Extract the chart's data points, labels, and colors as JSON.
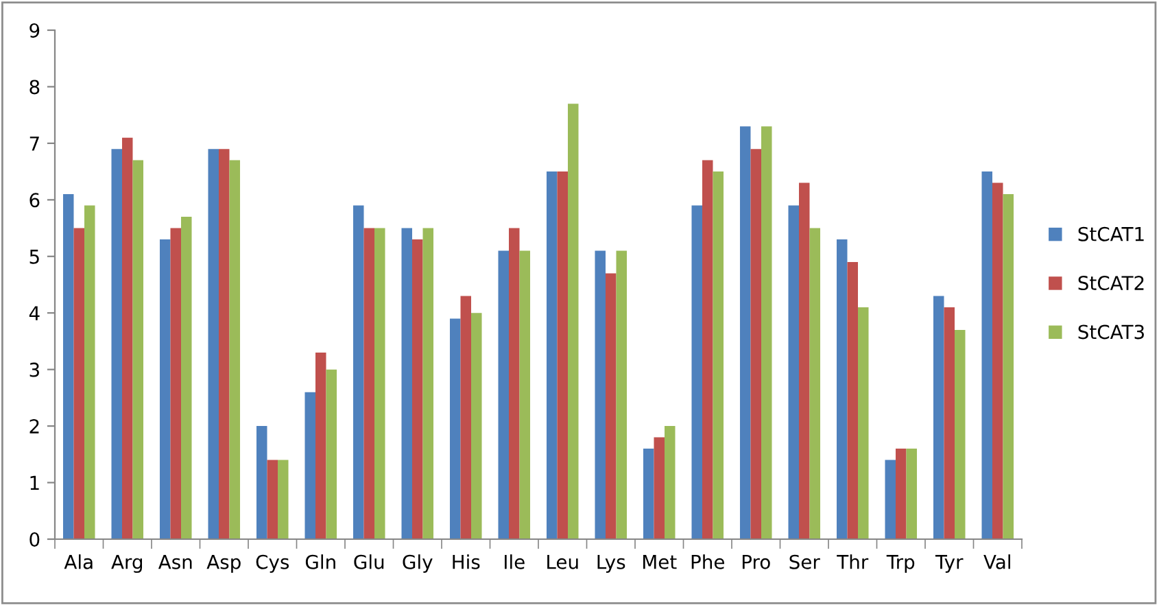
{
  "chart_data": {
    "type": "bar",
    "categories": [
      "Ala",
      "Arg",
      "Asn",
      "Asp",
      "Cys",
      "Gln",
      "Glu",
      "Gly",
      "His",
      "Ile",
      "Leu",
      "Lys",
      "Met",
      "Phe",
      "Pro",
      "Ser",
      "Thr",
      "Trp",
      "Tyr",
      "Val"
    ],
    "series": [
      {
        "name": "StCAT1",
        "color": "#4f81bd",
        "values": [
          6.1,
          6.9,
          5.3,
          6.9,
          2.0,
          2.6,
          5.9,
          5.5,
          3.9,
          5.1,
          6.5,
          5.1,
          1.6,
          5.9,
          7.3,
          5.9,
          5.3,
          1.4,
          4.3,
          6.5
        ]
      },
      {
        "name": "StCAT2",
        "color": "#c0504d",
        "values": [
          5.5,
          7.1,
          5.5,
          6.9,
          1.4,
          3.3,
          5.5,
          5.3,
          4.3,
          5.5,
          6.5,
          4.7,
          1.8,
          6.7,
          6.9,
          6.3,
          4.9,
          1.6,
          4.1,
          6.3
        ]
      },
      {
        "name": "StCAT3",
        "color": "#9bbb59",
        "values": [
          5.9,
          6.7,
          5.7,
          6.7,
          1.4,
          3.0,
          5.5,
          5.5,
          4.0,
          5.1,
          7.7,
          5.1,
          2.0,
          6.5,
          7.3,
          5.5,
          4.1,
          1.6,
          3.7,
          6.1
        ]
      }
    ],
    "ylim": [
      0,
      9
    ],
    "yticks": [
      0,
      1,
      2,
      3,
      4,
      5,
      6,
      7,
      8,
      9
    ],
    "grid": false,
    "legend": "right"
  }
}
